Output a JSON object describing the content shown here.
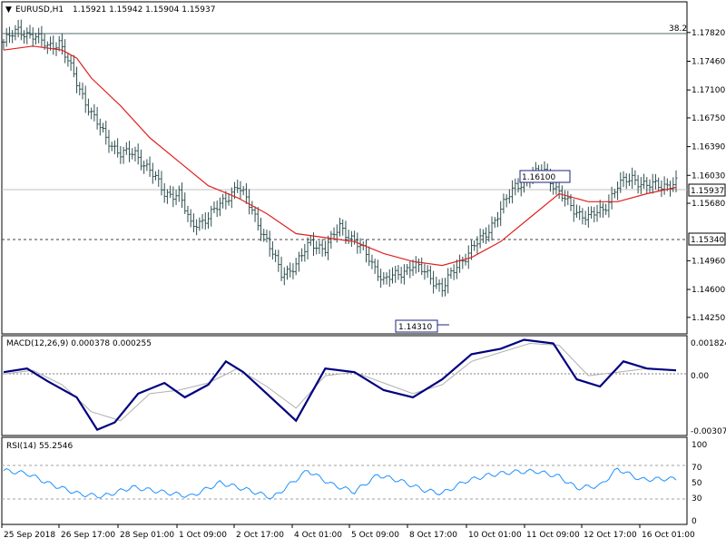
{
  "header": {
    "symbol_label": "EURUSD,H1",
    "ohlc_label": "1.15921 1.15942 1.15904 1.15937"
  },
  "panels": {
    "macd_label": "MACD(12,26,9) 0.000378 0.000255",
    "rsi_label": "RSI(14) 55.2546"
  },
  "fib_label": "38.2",
  "colors": {
    "candles": "#2f4f4f",
    "ma": "#e02020",
    "macd_line": "#000080",
    "macd_signal": "#b0b0b0",
    "rsi": "#1e90ff",
    "grid_dash": "#808080"
  },
  "price_axis": {
    "ticks": [
      "1.17820",
      "1.17460",
      "1.17100",
      "1.16750",
      "1.16390",
      "1.16030",
      "1.15680",
      "1.14960",
      "1.14600",
      "1.14250"
    ],
    "current_label": "1.15937",
    "support_label": "1.15340"
  },
  "macd_axis": {
    "ticks": [
      "0.001824",
      "0.00",
      "-0.003072"
    ]
  },
  "rsi_axis": {
    "ticks": [
      "100",
      "70",
      "50",
      "30",
      "0"
    ]
  },
  "time_axis": [
    "25 Sep 2018",
    "26 Sep 17:00",
    "28 Sep 01:00",
    "1 Oct 09:00",
    "2 Oct 17:00",
    "4 Oct 01:00",
    "5 Oct 09:00",
    "8 Oct 17:00",
    "10 Oct 01:00",
    "11 Oct 09:00",
    "12 Oct 17:00",
    "16 Oct 01:00"
  ],
  "annotations": {
    "high_label": "1.16100",
    "low_label": "1.14310"
  },
  "chart_data": {
    "type": "candlestick",
    "symbol": "EURUSD",
    "timeframe": "H1",
    "last_bar": {
      "open": 1.15921,
      "high": 1.15942,
      "low": 1.15904,
      "close": 1.15937
    },
    "price_range": [
      1.141,
      1.18
    ],
    "close_path": [
      [
        0,
        1.177
      ],
      [
        5,
        1.1785
      ],
      [
        10,
        1.1778
      ],
      [
        15,
        1.1765
      ],
      [
        19,
        1.177
      ],
      [
        22,
        1.1745
      ],
      [
        25,
        1.172
      ],
      [
        30,
        1.168
      ],
      [
        35,
        1.165
      ],
      [
        40,
        1.163
      ],
      [
        45,
        1.163
      ],
      [
        50,
        1.161
      ],
      [
        55,
        1.158
      ],
      [
        60,
        1.158
      ],
      [
        64,
        1.154
      ],
      [
        70,
        1.155
      ],
      [
        75,
        1.157
      ],
      [
        80,
        1.159
      ],
      [
        85,
        1.156
      ],
      [
        90,
        1.152
      ],
      [
        95,
        1.148
      ],
      [
        100,
        1.149
      ],
      [
        105,
        1.152
      ],
      [
        110,
        1.151
      ],
      [
        115,
        1.154
      ],
      [
        120,
        1.152
      ],
      [
        125,
        1.15
      ],
      [
        130,
        1.147
      ],
      [
        135,
        1.148
      ],
      [
        140,
        1.149
      ],
      [
        145,
        1.148
      ],
      [
        150,
        1.146
      ],
      [
        155,
        1.149
      ],
      [
        160,
        1.151
      ],
      [
        165,
        1.153
      ],
      [
        170,
        1.156
      ],
      [
        175,
        1.159
      ],
      [
        180,
        1.16
      ],
      [
        185,
        1.161
      ],
      [
        190,
        1.158
      ],
      [
        195,
        1.156
      ],
      [
        200,
        1.155
      ],
      [
        205,
        1.156
      ],
      [
        210,
        1.159
      ],
      [
        215,
        1.16
      ],
      [
        220,
        1.159
      ],
      [
        225,
        1.159
      ],
      [
        230,
        1.1594
      ]
    ],
    "ma_path": [
      [
        0,
        1.176
      ],
      [
        10,
        1.1765
      ],
      [
        20,
        1.176
      ],
      [
        25,
        1.175
      ],
      [
        30,
        1.1725
      ],
      [
        40,
        1.169
      ],
      [
        50,
        1.165
      ],
      [
        60,
        1.162
      ],
      [
        70,
        1.159
      ],
      [
        80,
        1.1575
      ],
      [
        90,
        1.1555
      ],
      [
        100,
        1.153
      ],
      [
        110,
        1.1525
      ],
      [
        120,
        1.152
      ],
      [
        130,
        1.1505
      ],
      [
        140,
        1.1495
      ],
      [
        150,
        1.149
      ],
      [
        160,
        1.15
      ],
      [
        170,
        1.152
      ],
      [
        180,
        1.155
      ],
      [
        190,
        1.158
      ],
      [
        200,
        1.157
      ],
      [
        210,
        1.157
      ],
      [
        220,
        1.158
      ],
      [
        230,
        1.1588
      ]
    ],
    "macd": {
      "range": [
        -0.003072,
        0.001824
      ],
      "line": [
        [
          0,
          0.0002
        ],
        [
          8,
          0.0004
        ],
        [
          15,
          -0.0003
        ],
        [
          25,
          -0.0012
        ],
        [
          32,
          -0.003
        ],
        [
          38,
          -0.0026
        ],
        [
          46,
          -0.001
        ],
        [
          55,
          -0.0004
        ],
        [
          62,
          -0.0012
        ],
        [
          70,
          -0.0005
        ],
        [
          76,
          0.0008
        ],
        [
          82,
          0.0002
        ],
        [
          90,
          -0.001
        ],
        [
          100,
          -0.0025
        ],
        [
          110,
          0.0004
        ],
        [
          120,
          0.0002
        ],
        [
          130,
          -0.0008
        ],
        [
          140,
          -0.0012
        ],
        [
          150,
          -0.0002
        ],
        [
          160,
          0.0012
        ],
        [
          170,
          0.0015
        ],
        [
          178,
          0.002
        ],
        [
          188,
          0.0018
        ],
        [
          196,
          -0.0002
        ],
        [
          204,
          -0.0006
        ],
        [
          212,
          0.0008
        ],
        [
          220,
          0.0004
        ],
        [
          230,
          0.0003
        ]
      ],
      "signal": [
        [
          0,
          0.0001
        ],
        [
          10,
          0.0003
        ],
        [
          20,
          -0.0005
        ],
        [
          30,
          -0.002
        ],
        [
          40,
          -0.0025
        ],
        [
          50,
          -0.001
        ],
        [
          60,
          -0.0008
        ],
        [
          70,
          -0.0004
        ],
        [
          80,
          0.0004
        ],
        [
          90,
          -0.0006
        ],
        [
          100,
          -0.0018
        ],
        [
          110,
          0.0
        ],
        [
          120,
          0.0002
        ],
        [
          130,
          -0.0004
        ],
        [
          140,
          -0.001
        ],
        [
          150,
          -0.0005
        ],
        [
          160,
          0.0008
        ],
        [
          170,
          0.0013
        ],
        [
          180,
          0.0018
        ],
        [
          190,
          0.0017
        ],
        [
          200,
          0.0
        ],
        [
          210,
          0.0002
        ],
        [
          220,
          0.0004
        ],
        [
          230,
          0.0003
        ]
      ]
    },
    "rsi": [
      [
        0,
        66
      ],
      [
        8,
        62
      ],
      [
        16,
        48
      ],
      [
        26,
        35
      ],
      [
        34,
        32
      ],
      [
        44,
        44
      ],
      [
        54,
        38
      ],
      [
        64,
        32
      ],
      [
        74,
        50
      ],
      [
        84,
        40
      ],
      [
        92,
        30
      ],
      [
        104,
        66
      ],
      [
        112,
        48
      ],
      [
        120,
        38
      ],
      [
        128,
        60
      ],
      [
        136,
        52
      ],
      [
        144,
        40
      ],
      [
        150,
        36
      ],
      [
        158,
        52
      ],
      [
        166,
        60
      ],
      [
        174,
        64
      ],
      [
        182,
        65
      ],
      [
        190,
        58
      ],
      [
        196,
        43
      ],
      [
        204,
        46
      ],
      [
        210,
        68
      ],
      [
        218,
        54
      ],
      [
        226,
        55
      ],
      [
        230,
        55
      ]
    ],
    "rsi_levels": [
      70,
      30
    ]
  }
}
